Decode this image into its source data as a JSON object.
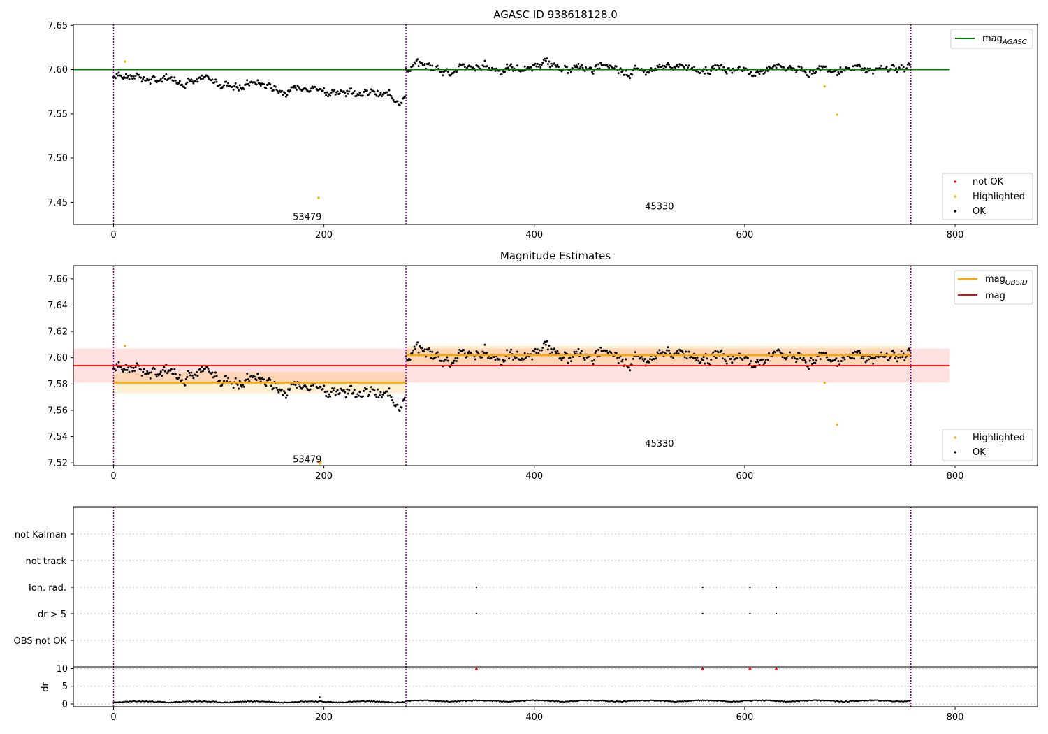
{
  "chart_data": [
    {
      "type": "scatter",
      "title": "AGASC ID 938618128.0",
      "xlim": [
        -38,
        880
      ],
      "ylim": [
        7.425,
        7.651
      ],
      "xticks": [
        "0",
        "200",
        "400",
        "600",
        "800"
      ],
      "yticks": [
        "7.45",
        "7.50",
        "7.55",
        "7.60",
        "7.65"
      ],
      "observation_boundaries": [
        0,
        278,
        758
      ],
      "obsid_labels": [
        {
          "text": "53479",
          "x": 139,
          "y": 7.434
        },
        {
          "text": "45330",
          "x": 517,
          "y": 7.446
        }
      ],
      "reference_line": {
        "name": "mag$_{AGASC}$",
        "label_main": "mag",
        "label_sub": "AGASC",
        "y": 7.6,
        "x": [
          -38,
          795
        ],
        "color": "#008000"
      },
      "legend_lines": {
        "entries": [
          {
            "label_main": "mag",
            "label_sub": "AGASC"
          }
        ],
        "placement": "upper right"
      },
      "legend_points": {
        "entries": [
          "not OK",
          "Highlighted",
          "OK"
        ],
        "colors": [
          "#ff0000",
          "#ffa500",
          "#000000"
        ],
        "placement": "lower right"
      },
      "highlighted_points": [
        [
          11,
          7.609
        ],
        [
          195,
          7.455
        ],
        [
          676,
          7.581
        ],
        [
          688,
          7.549
        ]
      ],
      "ok_series": [
        {
          "x_start": 0,
          "x_end": 277,
          "base": 7.593,
          "slope": -8e-05,
          "amp": 0.009,
          "seed": 3
        },
        {
          "x_start": 278,
          "x_end": 757,
          "base": 7.602,
          "slope": 0.0,
          "amp": 0.009,
          "seed": 11
        }
      ]
    },
    {
      "type": "scatter",
      "title": "Magnitude Estimates",
      "xlim": [
        -38,
        880
      ],
      "ylim": [
        7.518,
        7.67
      ],
      "xticks": [
        "0",
        "200",
        "400",
        "600",
        "800"
      ],
      "yticks": [
        "7.52",
        "7.54",
        "7.56",
        "7.58",
        "7.60",
        "7.62",
        "7.64",
        "7.66"
      ],
      "observation_boundaries": [
        0,
        278,
        758
      ],
      "obsid_labels": [
        {
          "text": "53479",
          "x": 139,
          "y": 7.523
        },
        {
          "text": "45330",
          "x": 517,
          "y": 7.535
        }
      ],
      "mag_line": {
        "label": "mag",
        "y": 7.594,
        "band": [
          7.581,
          7.607
        ],
        "x": [
          -38,
          795
        ],
        "color": "#ff0000"
      },
      "obsid_lines": [
        {
          "x": [
            0,
            278
          ],
          "y": 7.581,
          "band": [
            7.573,
            7.589
          ]
        },
        {
          "x": [
            278,
            758
          ],
          "y": 7.602,
          "band": [
            7.595,
            7.609
          ]
        }
      ],
      "legend_lines": {
        "entries": [
          {
            "label_main": "mag",
            "label_sub": "OBSID",
            "color": "#ffa500"
          },
          {
            "label_main": "mag",
            "label_sub": "",
            "color": "#ff0000"
          }
        ],
        "placement": "upper right"
      },
      "legend_points": {
        "entries": [
          "Highlighted",
          "OK"
        ],
        "colors": [
          "#ffa500",
          "#000000"
        ],
        "placement": "lower right"
      },
      "highlighted_points": [
        [
          11,
          7.609
        ],
        [
          676,
          7.581
        ],
        [
          688,
          7.549
        ]
      ],
      "off_scale_marker": {
        "x": 196,
        "y": 7.519
      }
    },
    {
      "type": "scatter",
      "categories": [
        "not Kalman",
        "not track",
        "Ion. rad.",
        "dr > 5",
        "OBS not OK"
      ],
      "xlim": [
        -38,
        880
      ],
      "xticks": [
        "0",
        "200",
        "400",
        "600",
        "800"
      ],
      "observation_boundaries": [
        0,
        278,
        758
      ],
      "flag_points": {
        "Ion. rad.": [
          345,
          560,
          605,
          630
        ],
        "dr > 5": [
          345,
          560,
          605,
          630
        ]
      },
      "dr_panel": {
        "ylabel": "dr",
        "yticks": [
          "0",
          "5",
          "10"
        ],
        "ylim": [
          -0.8,
          10.5
        ],
        "outliers_red": [
          [
            345,
            10
          ],
          [
            560,
            10
          ],
          [
            605,
            10
          ],
          [
            630,
            10
          ]
        ],
        "isolated_point": [
          196,
          1.9
        ]
      }
    }
  ]
}
